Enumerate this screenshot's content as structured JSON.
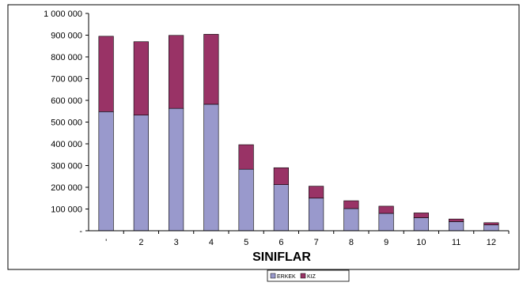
{
  "chart_data": {
    "type": "bar",
    "stacked": true,
    "xlabel": "SINIFLAR",
    "ylabel": "",
    "title": "",
    "categories": [
      "'",
      "2",
      "3",
      "4",
      "5",
      "6",
      "7",
      "8",
      "9",
      "10",
      "11",
      "12"
    ],
    "ylim": [
      0,
      1000000
    ],
    "yticks": [
      "-",
      "100 000",
      "200 000",
      "300 000",
      "400 000",
      "500 000",
      "600 000",
      "700 000",
      "800 000",
      "900 000",
      "1 000 000"
    ],
    "grid": false,
    "legend_position": "bottom",
    "series": [
      {
        "name": "ERKEK",
        "color": "#9999cc",
        "values": [
          548000,
          532000,
          563000,
          582000,
          283000,
          212000,
          150000,
          102000,
          80000,
          60000,
          42000,
          27000
        ]
      },
      {
        "name": "KIZ",
        "color": "#993366",
        "values": [
          347000,
          338000,
          336000,
          322000,
          113000,
          78000,
          55000,
          36000,
          33000,
          22000,
          12000,
          10000
        ]
      }
    ]
  }
}
